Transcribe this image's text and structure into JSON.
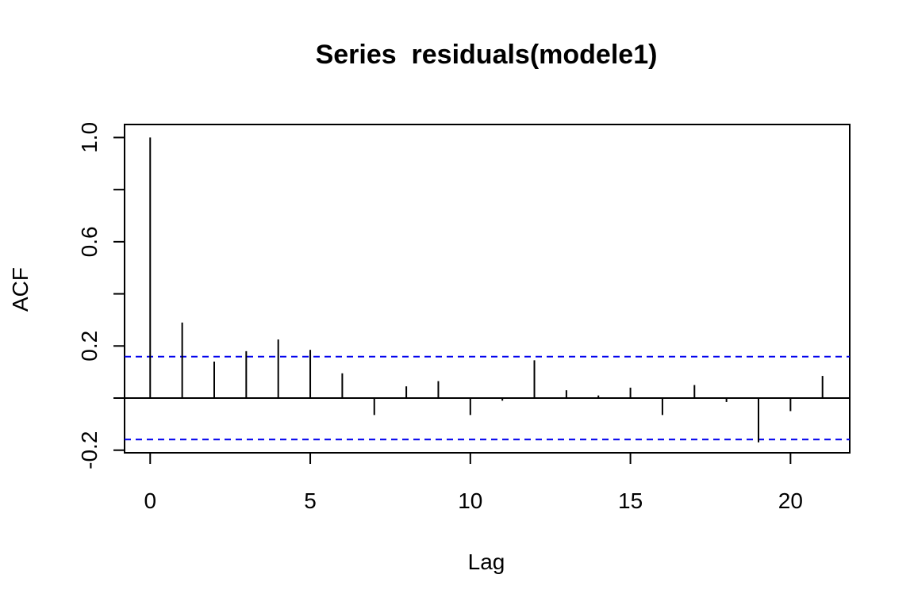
{
  "chart_data": {
    "type": "bar",
    "title": "Series  residuals(modele1)",
    "xlabel": "Lag",
    "ylabel": "ACF",
    "xlim": [
      -0.8,
      21.85
    ],
    "ylim": [
      -0.21,
      1.05
    ],
    "x_ticks": [
      0,
      5,
      10,
      15,
      20
    ],
    "x_tick_labels": [
      "0",
      "5",
      "10",
      "15",
      "20"
    ],
    "y_ticks": [
      -0.2,
      0.0,
      0.2,
      0.4,
      0.6,
      0.8,
      1.0
    ],
    "y_tick_labels": [
      "-0.2",
      "",
      "0.2",
      "",
      "0.6",
      "",
      "1.0"
    ],
    "lags": [
      0,
      1,
      2,
      3,
      4,
      5,
      6,
      7,
      8,
      9,
      10,
      11,
      12,
      13,
      14,
      15,
      16,
      17,
      18,
      19,
      20,
      21
    ],
    "acf": [
      1.0,
      0.29,
      0.14,
      0.18,
      0.225,
      0.185,
      0.095,
      -0.065,
      0.045,
      0.065,
      -0.065,
      -0.01,
      0.145,
      0.03,
      0.01,
      0.04,
      -0.065,
      0.05,
      -0.015,
      -0.17,
      -0.05,
      0.085
    ],
    "confidence_bounds": [
      0.159,
      -0.159
    ],
    "confidence_line_color": "#0000ee",
    "bar_color": "#000000",
    "grid": false
  }
}
